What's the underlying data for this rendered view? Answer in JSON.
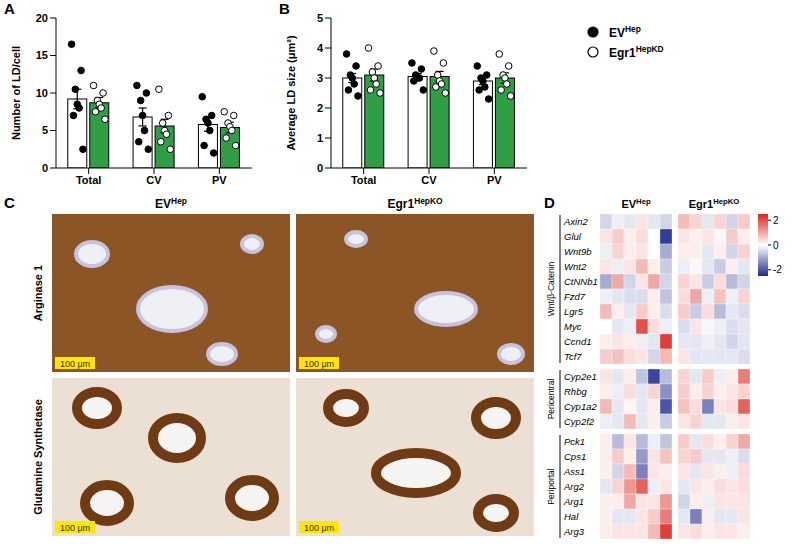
{
  "chart_data": [
    {
      "panel": "A",
      "type": "bar",
      "y_label": "Number of LD/cell",
      "categories": [
        "Total",
        "CV",
        "PV"
      ],
      "ylim": [
        0,
        20
      ],
      "yticks": [
        0,
        5,
        10,
        15,
        20
      ],
      "legend": "top right",
      "series": [
        {
          "name": "EV",
          "name_sup": "Hep",
          "color": "#ffffff",
          "marker": "filled",
          "values": [
            9.2,
            6.8,
            5.8
          ],
          "errors": [
            1.3,
            1.2,
            0.9
          ],
          "points": [
            [
              16.5,
              13,
              10.5,
              8.5,
              8,
              7,
              2.5
            ],
            [
              11,
              10,
              9,
              7,
              5,
              3.5,
              2.5
            ],
            [
              9.5,
              7,
              6.5,
              6,
              5,
              3,
              2
            ]
          ]
        },
        {
          "name": "Egr1",
          "name_sup": "HepKD",
          "color": "#2f9e44",
          "marker": "open",
          "values": [
            8.7,
            5.6,
            5.4
          ],
          "errors": [
            0.7,
            0.9,
            0.7
          ],
          "points": [
            [
              11,
              10,
              9,
              8.5,
              8,
              7.5,
              6.5
            ],
            [
              10.5,
              7,
              6,
              5,
              4.5,
              3.5,
              2.5
            ],
            [
              7.5,
              7,
              6,
              5.5,
              5,
              4,
              3
            ]
          ]
        }
      ]
    },
    {
      "panel": "B",
      "type": "bar",
      "y_label": "Average LD size (μm²)",
      "categories": [
        "Total",
        "CV",
        "PV"
      ],
      "ylim": [
        0,
        5
      ],
      "yticks": [
        0,
        1,
        2,
        3,
        4,
        5
      ],
      "series": [
        {
          "name": "EV",
          "name_sup": "Hep",
          "color": "#ffffff",
          "marker": "filled",
          "values": [
            3.0,
            3.05,
            2.9
          ],
          "errors": [
            0.15,
            0.1,
            0.12
          ],
          "points": [
            [
              3.8,
              3.4,
              3.1,
              3.0,
              2.8,
              2.6,
              2.4
            ],
            [
              3.5,
              3.3,
              3.1,
              3.0,
              3.0,
              2.9,
              2.6
            ],
            [
              3.4,
              3.1,
              3.0,
              2.9,
              2.7,
              2.6,
              2.3
            ]
          ]
        },
        {
          "name": "Egr1",
          "name_sup": "HepKD",
          "color": "#2f9e44",
          "marker": "open",
          "values": [
            3.1,
            3.05,
            3.0
          ],
          "errors": [
            0.2,
            0.17,
            0.17
          ],
          "points": [
            [
              4.0,
              3.4,
              3.2,
              3.0,
              2.8,
              2.6,
              2.5
            ],
            [
              3.9,
              3.5,
              3.1,
              2.9,
              2.8,
              2.7,
              2.5
            ],
            [
              3.8,
              3.4,
              3.1,
              3.0,
              2.8,
              2.6,
              2.4
            ]
          ]
        }
      ]
    },
    {
      "panel": "D",
      "type": "heatmap",
      "column_groups": [
        {
          "name": "EV",
          "name_sup": "Hep",
          "n": 6
        },
        {
          "name": "Egr1",
          "name_sup": "HepKO",
          "n": 6
        }
      ],
      "row_groups": [
        {
          "name": "Wnt/β-Catenin",
          "rows": [
            "Axin2",
            "Glul",
            "Wnt9b",
            "Wnt2",
            "CtNNb1",
            "Fzd7",
            "Lgr5",
            "Myc",
            "Ccnd1",
            "Tcf7"
          ]
        },
        {
          "name": "Pericentral",
          "rows": [
            "Cyp2e1",
            "Rhbg",
            "Cyp1a2",
            "Cyp2f2"
          ]
        },
        {
          "name": "Periportal",
          "rows": [
            "Pck1",
            "Cps1",
            "Ass1",
            "Arg2",
            "Arg1",
            "Hal",
            "Arg3"
          ]
        }
      ],
      "cells": [
        [
          -0.5,
          -0.2,
          -0.3,
          0.3,
          -0.3,
          -0.5,
          0.8,
          0.5,
          -0.3,
          0.5,
          -0.5,
          0.6
        ],
        [
          0.3,
          0.6,
          0.2,
          0.4,
          0,
          -2.3,
          0.3,
          0.2,
          0.3,
          0.1,
          0.6,
          0.2
        ],
        [
          -0.2,
          0.5,
          0.2,
          0.3,
          0,
          -1,
          0.2,
          0.2,
          -0.3,
          0.2,
          -0.5,
          0.5
        ],
        [
          0.3,
          -0.2,
          0.3,
          0.8,
          0.2,
          -0.6,
          -0.2,
          0.1,
          -0.3,
          -0.6,
          0.2,
          -0.3
        ],
        [
          -1,
          1,
          -0.5,
          0.3,
          1,
          -0.5,
          0.5,
          0.3,
          -0.6,
          0.4,
          -0.8,
          -0.5
        ],
        [
          -0.2,
          -0.3,
          -0.4,
          -0.4,
          0.2,
          -0.7,
          0.4,
          1,
          -0.2,
          0.7,
          -0.2,
          0.5
        ],
        [
          0.8,
          0.2,
          -0.3,
          0.6,
          0.2,
          -0.4,
          0.6,
          -0.6,
          0.4,
          -0.8,
          -0.3,
          -0.4
        ],
        [
          0,
          -0.3,
          -0.2,
          2,
          0.4,
          -0.2,
          -0.4,
          0.3,
          -0.1,
          -0.2,
          -0.4,
          -0.3
        ],
        [
          0.2,
          0.3,
          0.2,
          -0.2,
          -0.3,
          2.2,
          -0.3,
          -0.3,
          -0.2,
          -0.3,
          -0.5,
          -0.3
        ],
        [
          0.6,
          0.7,
          0.4,
          0.3,
          -0.5,
          0.8,
          0.3,
          -0.3,
          -0.3,
          -0.3,
          -0.3,
          -0.4
        ],
        [
          0.3,
          -0.3,
          0.2,
          -0.7,
          -2.2,
          -0.8,
          0.5,
          -0.3,
          0.6,
          -0.2,
          0.2,
          1.5
        ],
        [
          0.2,
          -0.2,
          0.4,
          -0.3,
          0.5,
          -1.3,
          0.6,
          0.2,
          0.5,
          0.2,
          0.3,
          0.5
        ],
        [
          0.8,
          -0.3,
          0.1,
          -0.3,
          0.2,
          -2,
          0.7,
          0.4,
          -1.5,
          0.3,
          0.4,
          1.8
        ],
        [
          -0.2,
          -0.3,
          0.8,
          -0.3,
          0.2,
          -0.6,
          0.3,
          0.5,
          -0.3,
          -0.3,
          0.2,
          0.3
        ],
        [
          0.2,
          -0.8,
          0.3,
          -0.8,
          -0.2,
          -0.7,
          0.6,
          -0.3,
          0.4,
          0.2,
          0.5,
          1
        ],
        [
          0.2,
          0.6,
          0.2,
          -1.2,
          0.3,
          0.7,
          0.5,
          0.6,
          -0.3,
          -0.3,
          -0.2,
          -0.4
        ],
        [
          0.2,
          -0.5,
          0.8,
          -1.5,
          0.3,
          0.2,
          0.3,
          -0.3,
          0.3,
          0.2,
          -0.2,
          0.4
        ],
        [
          -0.3,
          0.5,
          1.2,
          1.8,
          -0.2,
          0.3,
          -0.3,
          0.3,
          0.2,
          0.4,
          0.3,
          0.4
        ],
        [
          0.2,
          0.2,
          1,
          0.3,
          0.3,
          1.2,
          -0.5,
          0.2,
          -0.2,
          0.3,
          0.3,
          0.3
        ],
        [
          0.2,
          -0.3,
          -0.3,
          0.3,
          0.6,
          1.5,
          -0.3,
          -1.5,
          0.2,
          -0.3,
          -0.3,
          0.3
        ],
        [
          0.2,
          0.3,
          0.3,
          0.3,
          0.8,
          2.2,
          0.3,
          0.4,
          0.2,
          0.3,
          0.3,
          0.2
        ]
      ],
      "color_range": [
        -2.5,
        2.5
      ],
      "color_ticks": [
        -2,
        0,
        2
      ],
      "color_scale": [
        "#202c8e",
        "#ffffff",
        "#d9261c"
      ]
    }
  ],
  "panel_c": {
    "panel": "C",
    "columns": [
      {
        "name": "EV",
        "name_sup": "Hep"
      },
      {
        "name": "Egr1",
        "name_sup": "HepKO"
      }
    ],
    "rows": [
      "Arginase 1",
      "Glutamine Synthetase"
    ],
    "scale_bar": "100 μm"
  }
}
